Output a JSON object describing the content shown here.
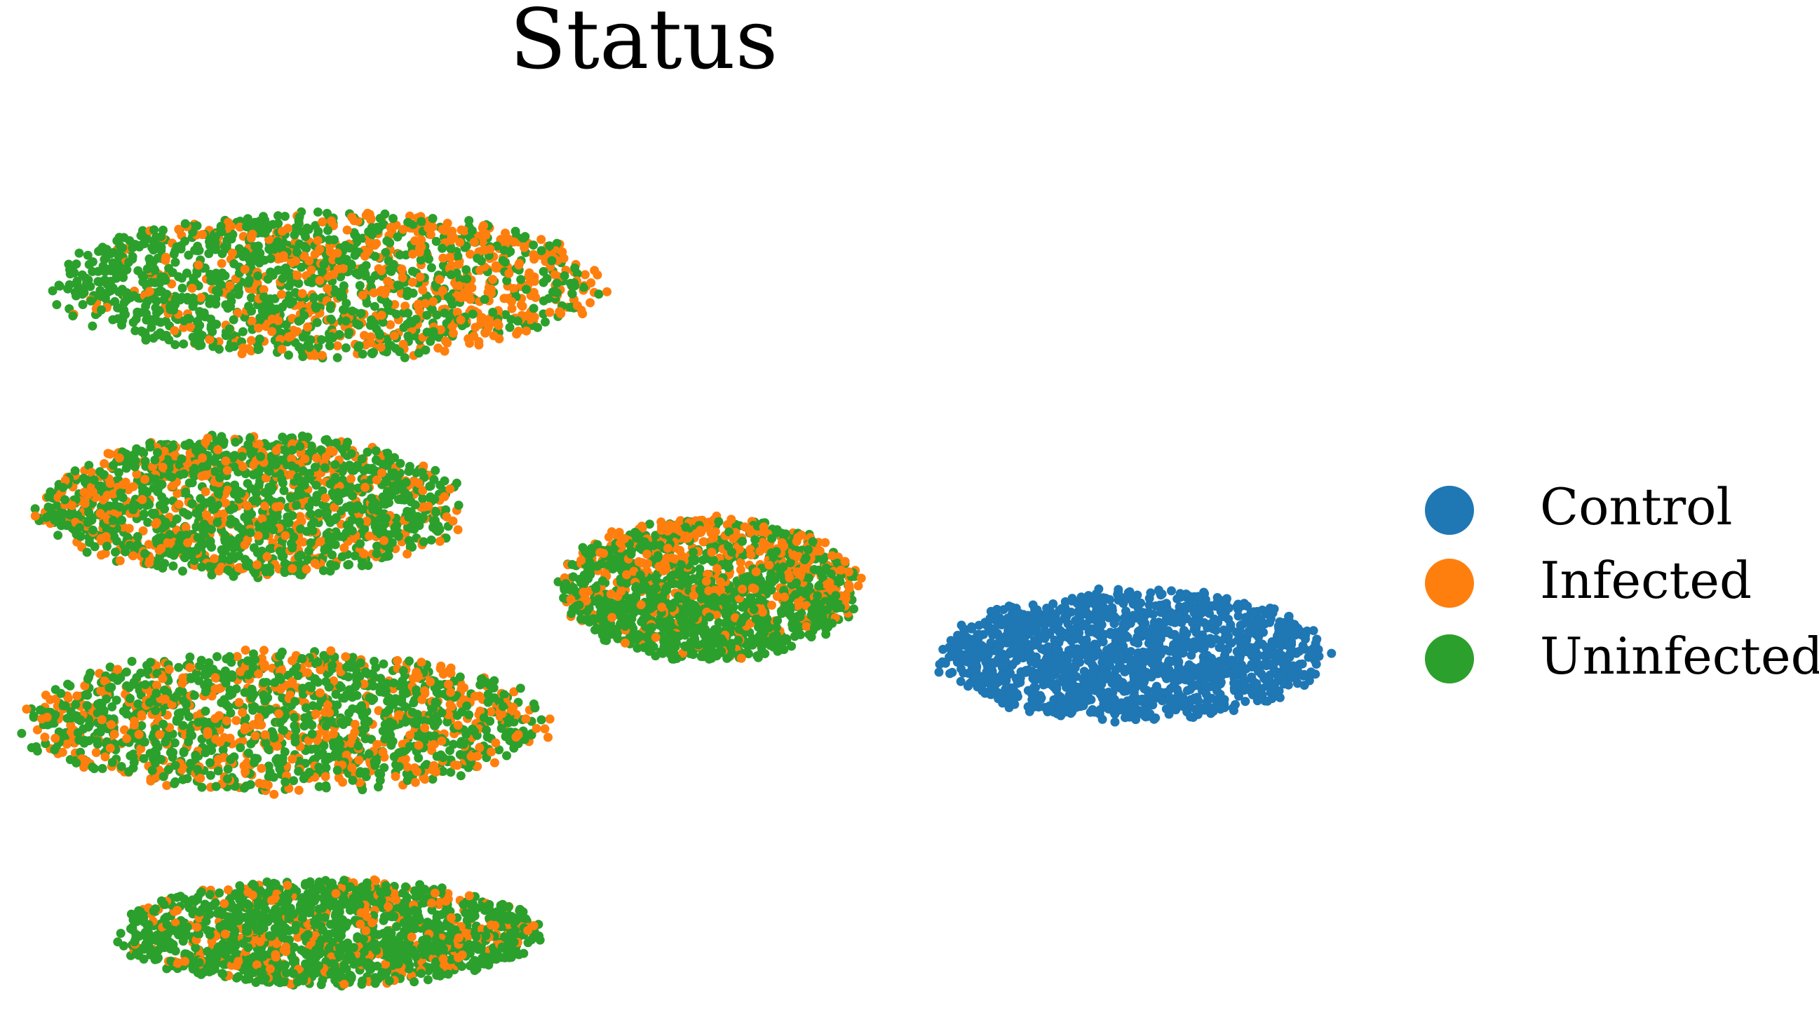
{
  "chart_data": {
    "type": "scatter",
    "title": "Status",
    "xlabel": "",
    "ylabel": "",
    "axes_visible": false,
    "grid": false,
    "legend_position": "right",
    "series": [
      {
        "name": "Control",
        "color": "#1f77b4"
      },
      {
        "name": "Infected",
        "color": "#ff7f0e"
      },
      {
        "name": "Uninfected",
        "color": "#2ca02c"
      }
    ],
    "clusters": [
      {
        "id": 1,
        "center": [
          -6.0,
          7.5
        ],
        "radius": [
          3.55,
          1.45
        ],
        "mix": {
          "Control": 0,
          "Infected": 0.38,
          "Uninfected": 0.62
        },
        "infected_gradient": "right"
      },
      {
        "id": 2,
        "center": [
          -7.0,
          3.2
        ],
        "radius": [
          2.75,
          1.4
        ],
        "mix": {
          "Control": 0,
          "Infected": 0.3,
          "Uninfected": 0.7
        }
      },
      {
        "id": 3,
        "center": [
          -6.6,
          -1.0
        ],
        "radius": [
          3.4,
          1.4
        ],
        "mix": {
          "Control": 0,
          "Infected": 0.35,
          "Uninfected": 0.65
        }
      },
      {
        "id": 4,
        "center": [
          -6.0,
          -5.1
        ],
        "radius": [
          2.75,
          1.05
        ],
        "mix": {
          "Control": 0,
          "Infected": 0.22,
          "Uninfected": 0.78
        }
      },
      {
        "id": 5,
        "center": [
          -1.2,
          1.6
        ],
        "radius": [
          1.95,
          1.4
        ],
        "mix": {
          "Control": 0,
          "Infected": 0.3,
          "Uninfected": 0.7
        },
        "infected_gradient": "top"
      },
      {
        "id": 6,
        "center": [
          4.2,
          0.3
        ],
        "radius": [
          2.5,
          1.3
        ],
        "mix": {
          "Control": 1,
          "Infected": 0,
          "Uninfected": 0
        }
      }
    ],
    "xlim": [
      -10.2,
      6.3
    ],
    "ylim": [
      -6.7,
      11.0
    ]
  }
}
